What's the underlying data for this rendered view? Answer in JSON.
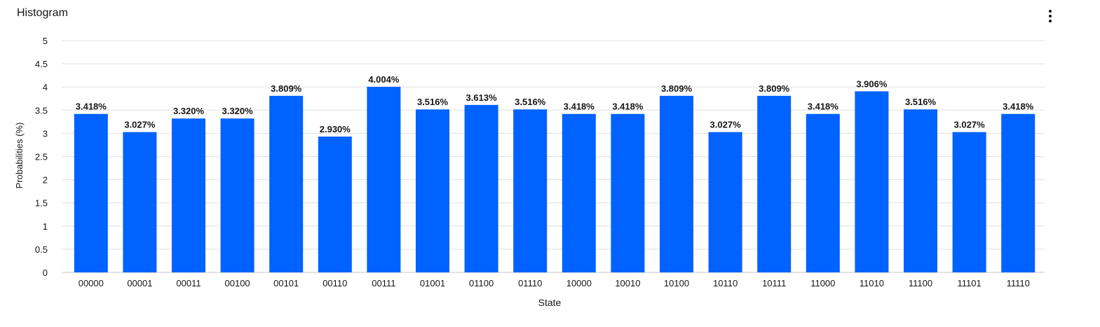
{
  "header": {
    "title": "Histogram",
    "menu_icon": "overflow-menu-vertical-icon"
  },
  "colors": {
    "bar": "#0062ff",
    "grid": "#e0e0e0",
    "text": "#161616"
  },
  "chart_data": {
    "type": "bar",
    "title": "Histogram",
    "xlabel": "State",
    "ylabel": "Probabilities (%)",
    "ylim": [
      0,
      5
    ],
    "yticks": [
      "0",
      "0.5",
      "1",
      "1.5",
      "2",
      "2.5",
      "3",
      "3.5",
      "4",
      "4.5",
      "5"
    ],
    "grid": true,
    "categories": [
      "00000",
      "00001",
      "00011",
      "00100",
      "00101",
      "00110",
      "00111",
      "01001",
      "01100",
      "01110",
      "10000",
      "10010",
      "10100",
      "10110",
      "10111",
      "11000",
      "11010",
      "11100",
      "11101",
      "11110"
    ],
    "values": [
      3.418,
      3.027,
      3.32,
      3.32,
      3.809,
      2.93,
      4.004,
      3.516,
      3.613,
      3.516,
      3.418,
      3.418,
      3.809,
      3.027,
      3.809,
      3.418,
      3.906,
      3.516,
      3.027,
      3.418
    ],
    "data_labels": [
      "3.418%",
      "3.027%",
      "3.320%",
      "3.320%",
      "3.809%",
      "2.930%",
      "4.004%",
      "3.516%",
      "3.613%",
      "3.516%",
      "3.418%",
      "3.418%",
      "3.809%",
      "3.027%",
      "3.809%",
      "3.418%",
      "3.906%",
      "3.516%",
      "3.027%",
      "3.418%"
    ]
  }
}
